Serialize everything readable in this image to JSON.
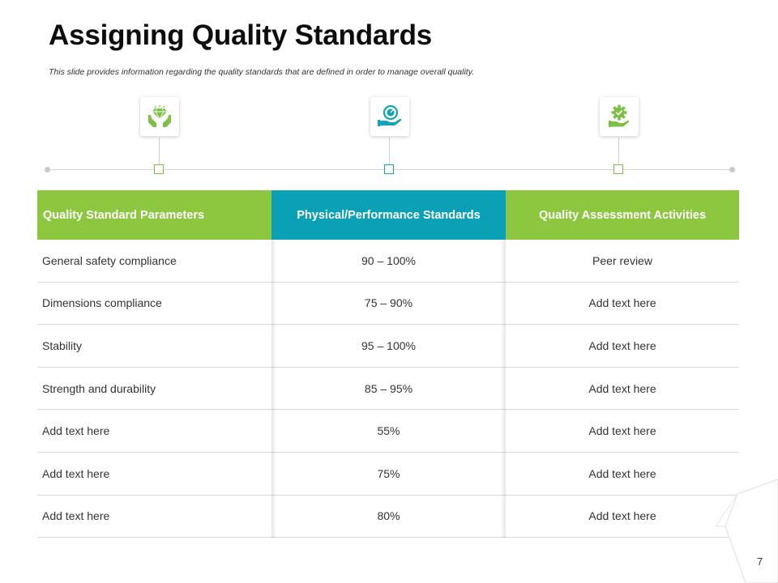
{
  "slide": {
    "title": "Assigning Quality Standards",
    "subtitle": "This slide provides information regarding the quality standards that are defined in order to manage overall quality.",
    "page_number": "7"
  },
  "colors": {
    "green": "#8dc63f",
    "teal": "#0aa1b6",
    "icon_green": "#7ac143",
    "icon_teal": "#0ea5b8"
  },
  "icons": [
    "diamond-hands-icon",
    "gauge-hand-icon",
    "gear-hand-icon"
  ],
  "table": {
    "headers": [
      "Quality  Standard Parameters",
      "Physical/Performance Standards",
      "Quality Assessment Activities"
    ],
    "rows": [
      [
        "General safety compliance",
        "90 – 100%",
        "Peer review"
      ],
      [
        "Dimensions compliance",
        "75 – 90%",
        "Add text here"
      ],
      [
        "Stability",
        "95 – 100%",
        "Add text here"
      ],
      [
        "Strength and durability",
        "85 – 95%",
        "Add text here"
      ],
      [
        "Add text here",
        "55%",
        "Add text here"
      ],
      [
        "Add text here",
        "75%",
        "Add text here"
      ],
      [
        "Add text here",
        "80%",
        "Add text here"
      ]
    ]
  }
}
